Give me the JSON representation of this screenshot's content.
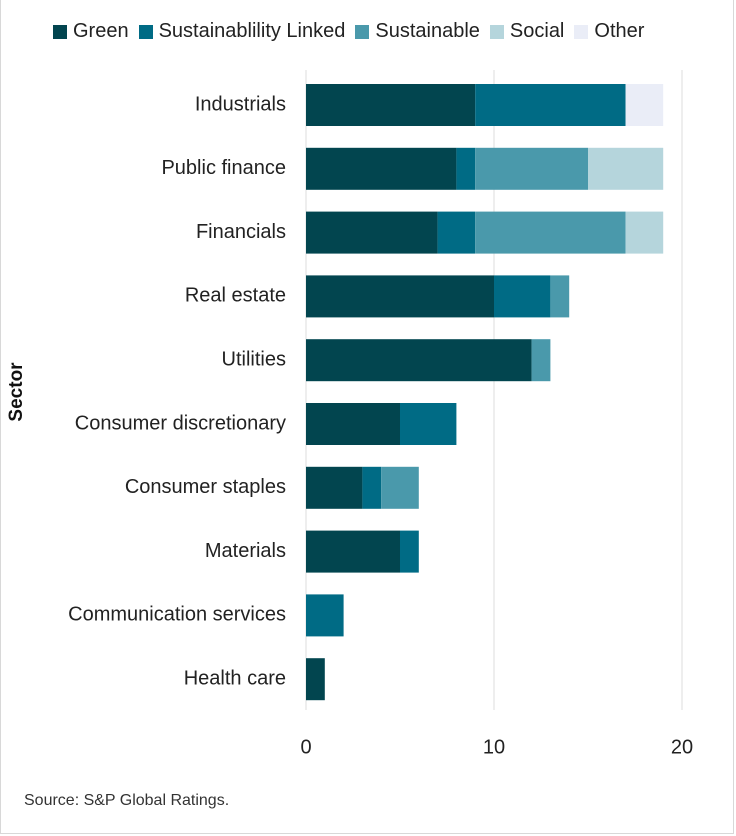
{
  "chart_data": {
    "type": "bar",
    "orientation": "horizontal",
    "stacked": true,
    "title": "",
    "xlabel": "",
    "ylabel": "Sector",
    "xlim": [
      0,
      20
    ],
    "xticks": [
      0,
      10,
      20
    ],
    "grid": "vertical",
    "legend_position": "top",
    "categories": [
      "Industrials",
      "Public finance",
      "Financials",
      "Real estate",
      "Utilities",
      "Consumer discretionary",
      "Consumer staples",
      "Materials",
      "Communication services",
      "Health care"
    ],
    "series": [
      {
        "name": "Green",
        "color": "#02454f",
        "values": [
          9,
          8,
          7,
          10,
          12,
          5,
          3,
          5,
          0,
          1
        ]
      },
      {
        "name": "Sustainablility Linked",
        "color": "#006b85",
        "values": [
          8,
          1,
          2,
          3,
          0,
          3,
          1,
          1,
          2,
          0
        ]
      },
      {
        "name": "Sustainable",
        "color": "#4a99ab",
        "values": [
          0,
          6,
          8,
          1,
          1,
          0,
          2,
          0,
          0,
          0
        ]
      },
      {
        "name": "Social",
        "color": "#b5d5dc",
        "values": [
          0,
          4,
          2,
          0,
          0,
          0,
          0,
          0,
          0,
          0
        ]
      },
      {
        "name": "Other",
        "color": "#eaedf7",
        "values": [
          2,
          0,
          0,
          0,
          0,
          0,
          0,
          0,
          0,
          0
        ]
      }
    ]
  },
  "source": "Source: S&P Global Ratings."
}
